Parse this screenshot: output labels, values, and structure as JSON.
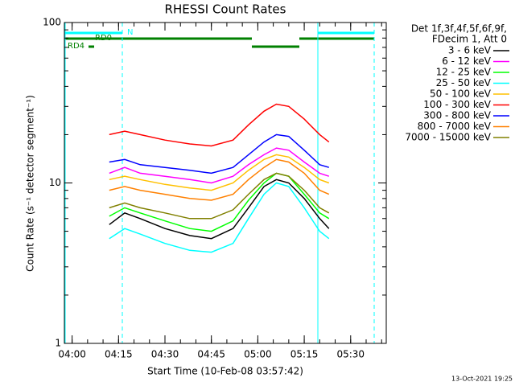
{
  "chart_data": {
    "type": "line",
    "title": "RHESSI Count Rates",
    "y_label": "Count Rate (s⁻¹ detector segment⁻¹)",
    "x_label": "Start Time (10-Feb-08 03:57:42)",
    "legend_header": [
      "Det 1f,3f,4f,5f,6f,9f,",
      "FDecim 1, Att 0"
    ],
    "footer": "13-Oct-2021 19:25",
    "annotations": [
      "N",
      "RD0",
      "RD4"
    ],
    "log_y": true,
    "xlim": [
      "03:57:30",
      "05:41:30"
    ],
    "xticks": [
      "04:00",
      "04:15",
      "04:30",
      "04:45",
      "05:00",
      "05:15",
      "05:30"
    ],
    "ylim": [
      1,
      100
    ],
    "yticks": [
      1,
      10,
      100
    ],
    "x": [
      "04:12",
      "04:17",
      "04:22",
      "04:30",
      "04:38",
      "04:45",
      "04:52",
      "04:57",
      "05:02",
      "05:06",
      "05:10",
      "05:15",
      "05:20",
      "05:23"
    ],
    "series": [
      {
        "name": "3 - 6 keV",
        "color": "#000000",
        "values": [
          5.5,
          6.5,
          6,
          5.2,
          4.7,
          4.5,
          5.2,
          7,
          9.5,
          10.5,
          10,
          8,
          6,
          5.2
        ]
      },
      {
        "name": "6 - 12 keV",
        "color": "#ff00ff",
        "values": [
          11.5,
          12.5,
          11.5,
          11,
          10.5,
          10,
          11,
          13,
          15,
          16.5,
          16,
          13.5,
          11.5,
          11
        ]
      },
      {
        "name": "12 - 25 keV",
        "color": "#00ff00",
        "values": [
          6.2,
          7,
          6.5,
          5.8,
          5.2,
          5,
          5.8,
          7.8,
          10,
          11.5,
          11,
          8.5,
          6.5,
          6
        ]
      },
      {
        "name": "25 - 50 keV",
        "color": "#00ffff",
        "values": [
          4.5,
          5.2,
          4.8,
          4.2,
          3.8,
          3.7,
          4.2,
          6,
          8.5,
          10,
          9.5,
          7,
          5,
          4.5
        ]
      },
      {
        "name": "50 - 100 keV",
        "color": "#ffc000",
        "values": [
          10.5,
          11,
          10.5,
          9.8,
          9.3,
          9,
          10,
          12,
          14,
          15,
          14.5,
          12.5,
          10.5,
          10
        ]
      },
      {
        "name": "100 - 300 keV",
        "color": "#ff0000",
        "values": [
          20,
          21,
          20,
          18.5,
          17.5,
          17,
          18.5,
          23,
          28,
          31,
          30,
          25,
          20,
          18
        ]
      },
      {
        "name": "300 - 800 keV",
        "color": "#0000ff",
        "values": [
          13.5,
          14,
          13,
          12.5,
          12,
          11.5,
          12.5,
          15,
          18,
          20,
          19.5,
          16,
          13,
          12.5
        ]
      },
      {
        "name": "800 - 7000 keV",
        "color": "#ff8000",
        "values": [
          9,
          9.5,
          9,
          8.5,
          8,
          7.8,
          8.5,
          10.5,
          12.5,
          14,
          13.5,
          11.5,
          9,
          8.5
        ]
      },
      {
        "name": "7000 - 15000 keV",
        "color": "#808000",
        "values": [
          7,
          7.5,
          7,
          6.5,
          6,
          6,
          6.8,
          8.5,
          10.5,
          11.5,
          11,
          9,
          7,
          6.5
        ]
      }
    ]
  }
}
